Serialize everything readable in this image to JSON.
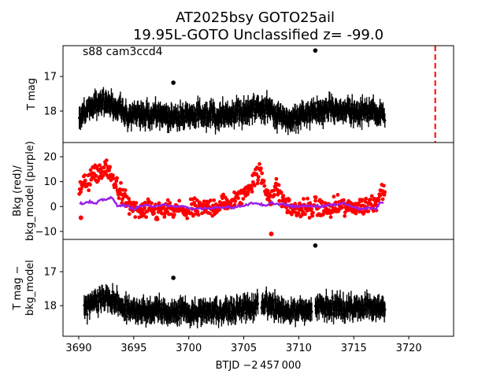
{
  "chart_data": {
    "type": "scatter",
    "title_line1": "AT2025bsy  GOTO25ail",
    "title_line2": "19.95L-GOTO Unclassified z= -99.0",
    "annotation": "s88 cam3ccd4",
    "xlabel": "BTJD −2 457 000",
    "xlim": [
      3688.57,
      3724.07
    ],
    "xticks": [
      3690,
      3695,
      3700,
      3705,
      3710,
      3715,
      3720
    ],
    "xtick_labels": [
      "3690",
      "3695",
      "3700",
      "3705",
      "3710",
      "3715",
      "3720"
    ],
    "reference_line": {
      "x": 3722.4,
      "color": "#ff0000",
      "style": "dashed"
    },
    "time_grid": [
      3690,
      3690.5,
      3691,
      3691.5,
      3692,
      3692.5,
      3693,
      3693.5,
      3694,
      3694.5,
      3695,
      3695.5,
      3696,
      3696.5,
      3697,
      3697.5,
      3698,
      3698.5,
      3699,
      3699.5,
      3700,
      3700.5,
      3701,
      3701.5,
      3702,
      3702.5,
      3703,
      3703.5,
      3704,
      3704.5,
      3705,
      3705.5,
      3706,
      3706.5,
      3707,
      3707.5,
      3708,
      3708.5,
      3709,
      3709.5,
      3710,
      3710.5,
      3711,
      3711.5,
      3712,
      3712.5,
      3713,
      3713.5,
      3714,
      3714.5,
      3715,
      3715.5,
      3716,
      3716.5,
      3717,
      3717.5,
      3718
    ],
    "panels": [
      {
        "name": "tmag",
        "ylabel": [
          "T mag"
        ],
        "ylim": [
          18.91,
          16.11
        ],
        "yticks": [
          17,
          18
        ],
        "ytick_labels": [
          "17",
          "18"
        ],
        "color": "#000000",
        "mag_mean": [
          18.2,
          18.0,
          17.9,
          17.8,
          17.75,
          17.8,
          17.8,
          17.9,
          18.0,
          18.1,
          18.1,
          18.15,
          18.1,
          18.15,
          18.1,
          18.1,
          18.15,
          18.1,
          18.15,
          18.1,
          18.2,
          18.15,
          18.1,
          18.15,
          18.1,
          18.15,
          18.15,
          18.1,
          18.1,
          18.05,
          18.0,
          18.0,
          17.95,
          17.9,
          17.95,
          18.0,
          18.1,
          18.15,
          18.2,
          18.2,
          18.15,
          18.1,
          18.1,
          18.0,
          18.0,
          17.95,
          17.95,
          17.95,
          18.0,
          18.0,
          18.0,
          18.05,
          18.0,
          18.0,
          18.05,
          18.1,
          18.2
        ],
        "scatter": 0.35,
        "outliers": [
          {
            "x": 3711.5,
            "y": 16.25
          },
          {
            "x": 3698.6,
            "y": 17.18
          }
        ]
      },
      {
        "name": "background",
        "ylabel": [
          "Bkg (red)/",
          "bkg_model (purple)"
        ],
        "ylim": [
          -13.2,
          25.7
        ],
        "yticks": [
          -10,
          0,
          10,
          20
        ],
        "ytick_labels": [
          "−10",
          "0",
          "10",
          "20"
        ],
        "bkg_color": "#ff0000",
        "model_color": "#9b1fe8",
        "bkg_mean": [
          6,
          9,
          11,
          13,
          14,
          15,
          12,
          8,
          4,
          1,
          -1,
          -2,
          -2,
          -1,
          -2,
          -2,
          -1,
          -2,
          -1,
          -2,
          -2,
          -1,
          -1,
          -1,
          0,
          0,
          1,
          1,
          2,
          3,
          5,
          8,
          12,
          14,
          6,
          4,
          8,
          3,
          0,
          -1,
          -1,
          -1,
          -1,
          0,
          -1,
          -1,
          -1,
          0,
          0,
          -1,
          0,
          0,
          0,
          1,
          2,
          6,
          10
        ],
        "bkg_scatter": 6,
        "model": [
          1,
          1.5,
          2,
          1,
          2.5,
          3,
          3.5,
          0.5,
          0.5,
          0,
          -1,
          0,
          0.5,
          0,
          0.5,
          0.5,
          0.5,
          0,
          0,
          0,
          -0.5,
          -1,
          -1,
          -0.5,
          -1,
          -0.5,
          -0.5,
          0,
          -0.5,
          0,
          0.5,
          1,
          1.5,
          1,
          0,
          1.5,
          1,
          1,
          0.5,
          0,
          0,
          0.5,
          0,
          0.5,
          0,
          0.5,
          0.5,
          1,
          1.5,
          0.5,
          0,
          -1,
          -1,
          -0.5,
          -1,
          2,
          1
        ],
        "outliers": [
          {
            "x": 3707.5,
            "y": -11
          },
          {
            "x": 3690.2,
            "y": -4.5
          }
        ]
      },
      {
        "name": "detrended",
        "ylabel": [
          "T mag −",
          "bkg_model"
        ],
        "ylim": [
          18.9,
          16.05
        ],
        "yticks": [
          17,
          18
        ],
        "ytick_labels": [
          "17",
          "18"
        ],
        "color": "#000000",
        "mag_mean": [
          18.2,
          18.05,
          17.9,
          17.85,
          17.8,
          17.85,
          17.85,
          17.95,
          18.05,
          18.1,
          18.1,
          18.15,
          18.15,
          18.2,
          18.15,
          18.15,
          18.2,
          18.15,
          18.2,
          18.15,
          18.2,
          18.15,
          18.15,
          18.2,
          18.15,
          18.15,
          18.2,
          18.15,
          18.15,
          18.1,
          18.05,
          18.05,
          18.0,
          18.0,
          17.95,
          18.0,
          18.1,
          18.15,
          18.2,
          18.2,
          18.15,
          18.1,
          18.1,
          18.05,
          18.05,
          18.0,
          18.0,
          18.0,
          18.05,
          18.05,
          18.05,
          18.1,
          18.05,
          18.05,
          18.1,
          18.1,
          18.1
        ],
        "scatter": 0.35,
        "outliers": [
          {
            "x": 3711.5,
            "y": 16.23
          },
          {
            "x": 3698.6,
            "y": 17.18
          }
        ]
      }
    ]
  }
}
